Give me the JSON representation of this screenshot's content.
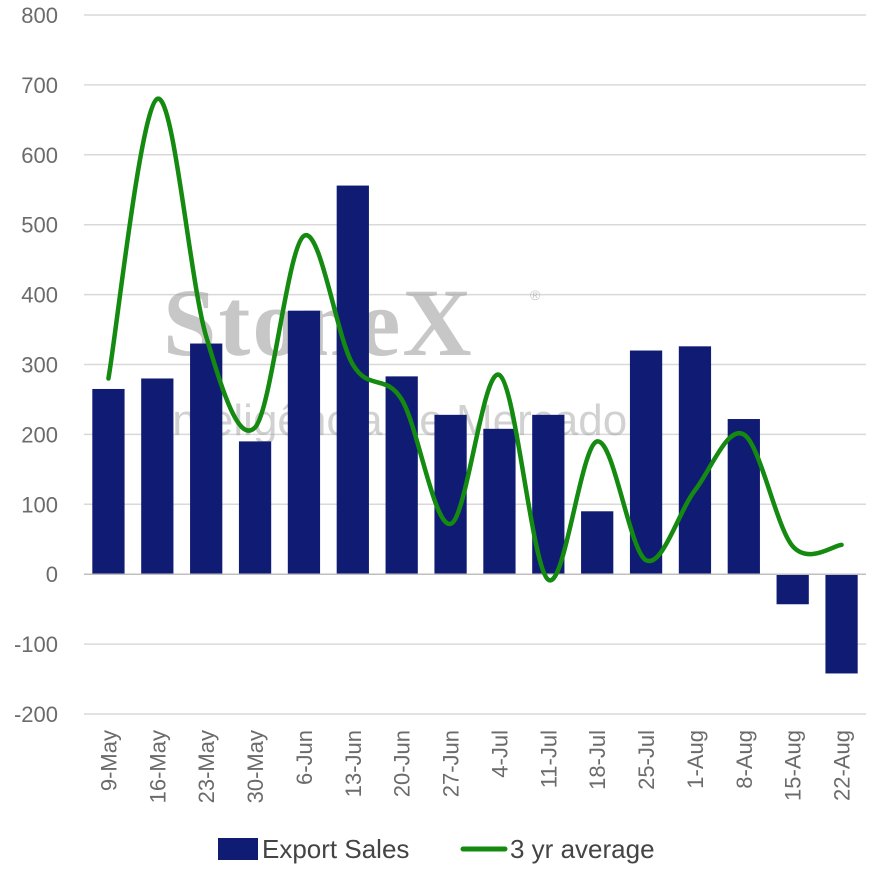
{
  "watermark": {
    "brand": "StoneX",
    "registered": "®",
    "subtitle": "Inteligência de Mercado"
  },
  "colors": {
    "bar": "#101C74",
    "line": "#148A10",
    "grid": "#d9d9d9",
    "axis": "#bfbfbf"
  },
  "chart_data": {
    "type": "bar",
    "categories": [
      "9-May",
      "16-May",
      "23-May",
      "30-May",
      "6-Jun",
      "13-Jun",
      "20-Jun",
      "27-Jun",
      "4-Jul",
      "11-Jul",
      "18-Jul",
      "25-Jul",
      "1-Aug",
      "8-Aug",
      "15-Aug",
      "22-Aug"
    ],
    "ylim": [
      -200,
      800
    ],
    "yticks": [
      -200,
      -100,
      0,
      100,
      200,
      300,
      400,
      500,
      600,
      700,
      800
    ],
    "ytick_labels": [
      "-200",
      "-100",
      "0",
      "100",
      "200",
      "300",
      "400",
      "500",
      "600",
      "700",
      "800"
    ],
    "grid": true,
    "legend_position": "bottom",
    "series": [
      {
        "name": "Export Sales",
        "type": "bar",
        "values": [
          265,
          280,
          330,
          190,
          377,
          556,
          283,
          228,
          208,
          228,
          90,
          320,
          326,
          222,
          -43,
          -142
        ]
      },
      {
        "name": "3 yr average",
        "type": "line",
        "smooth": true,
        "values": [
          280,
          680,
          340,
          210,
          484,
          300,
          250,
          72,
          285,
          -8,
          190,
          20,
          120,
          200,
          40,
          42
        ]
      }
    ]
  }
}
